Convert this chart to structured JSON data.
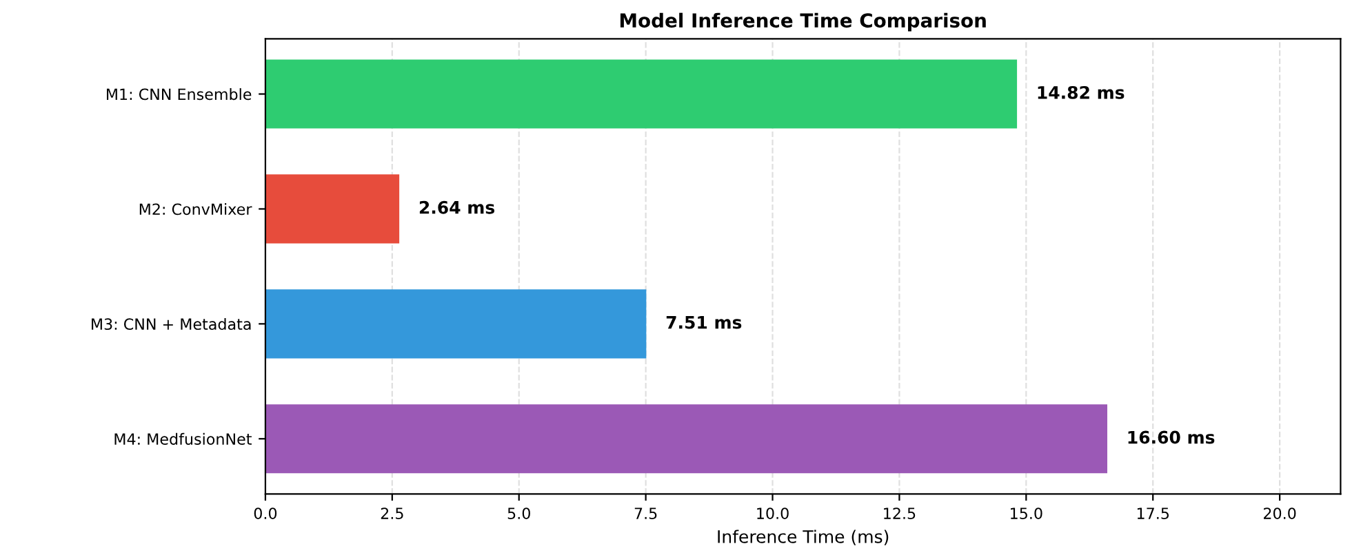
{
  "chart_data": {
    "type": "bar",
    "orientation": "horizontal",
    "title": "Model Inference Time Comparison",
    "xlabel": "Inference Time (ms)",
    "categories": [
      "M1: CNN Ensemble",
      "M2: ConvMixer",
      "M3: CNN + Metadata",
      "M4: MedfusionNet"
    ],
    "values": [
      14.82,
      2.64,
      7.51,
      16.6
    ],
    "colors": [
      "#2ecc71",
      "#e74c3c",
      "#3498db",
      "#9b59b6"
    ],
    "value_labels": [
      "14.82 ms",
      "2.64 ms",
      "7.51 ms",
      "16.60 ms"
    ],
    "xlim": [
      0,
      21.2
    ],
    "xticks": [
      {
        "value": 0,
        "label": "0.0"
      },
      {
        "value": 2.5,
        "label": "2.5"
      },
      {
        "value": 5,
        "label": "5.0"
      },
      {
        "value": 7.5,
        "label": "7.5"
      },
      {
        "value": 10,
        "label": "10.0"
      },
      {
        "value": 12.5,
        "label": "12.5"
      },
      {
        "value": 15,
        "label": "15.0"
      },
      {
        "value": 17.5,
        "label": "17.5"
      },
      {
        "value": 20,
        "label": "20.0"
      }
    ],
    "grid": "x"
  }
}
